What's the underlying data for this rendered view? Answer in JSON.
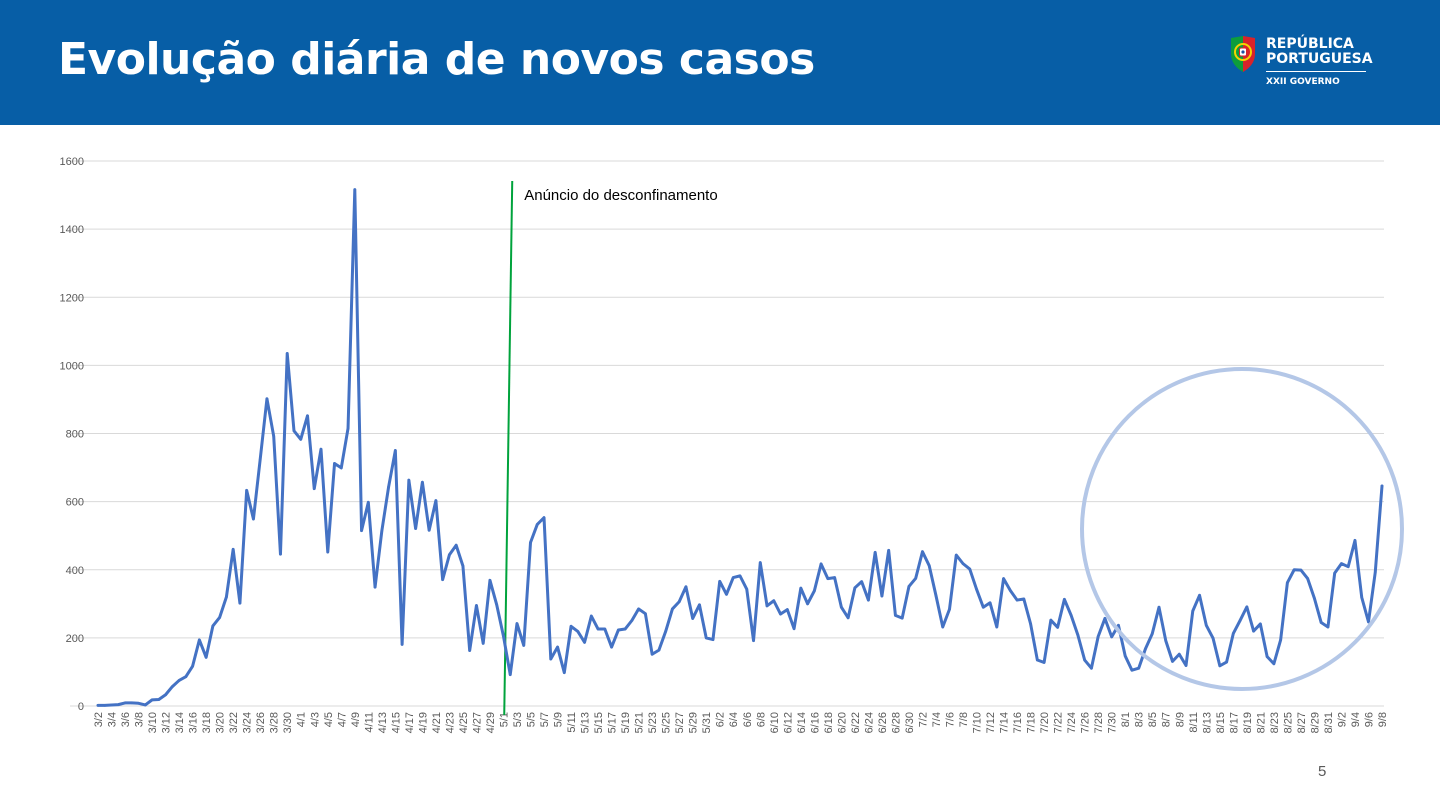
{
  "header": {
    "title": "Evolução diária de novos casos",
    "background_color": "#075ea6",
    "logo": {
      "line1": "REPÚBLICA",
      "line2": "PORTUGUESA",
      "line3": "XXII GOVERNO",
      "icon": "portugal-coat-of-arms-icon"
    }
  },
  "page_number": "5",
  "chart_data": {
    "type": "line",
    "title": "",
    "xlabel": "",
    "ylabel": "",
    "ylim": [
      0,
      1600
    ],
    "yticks": [
      0,
      200,
      400,
      600,
      800,
      1000,
      1200,
      1400,
      1600
    ],
    "grid": true,
    "start_date": "3/2",
    "x_tick_labels": [
      "3/2",
      "3/4",
      "3/6",
      "3/8",
      "3/10",
      "3/12",
      "3/14",
      "3/16",
      "3/18",
      "3/20",
      "3/22",
      "3/24",
      "3/26",
      "3/28",
      "3/30",
      "4/1",
      "4/3",
      "4/5",
      "4/7",
      "4/9",
      "4/11",
      "4/13",
      "4/15",
      "4/17",
      "4/19",
      "4/21",
      "4/23",
      "4/25",
      "4/27",
      "4/29",
      "5/1",
      "5/3",
      "5/5",
      "5/7",
      "5/9",
      "5/11",
      "5/13",
      "5/15",
      "5/17",
      "5/19",
      "5/21",
      "5/23",
      "5/25",
      "5/27",
      "5/29",
      "5/31",
      "6/2",
      "6/4",
      "6/6",
      "6/8",
      "6/10",
      "6/12",
      "6/14",
      "6/16",
      "6/18",
      "6/20",
      "6/22",
      "6/24",
      "6/26",
      "6/28",
      "6/30",
      "7/2",
      "7/4",
      "7/6",
      "7/8",
      "7/10",
      "7/12",
      "7/14",
      "7/16",
      "7/18",
      "7/20",
      "7/22",
      "7/24",
      "7/26",
      "7/28",
      "7/30",
      "8/1",
      "8/3",
      "8/5",
      "8/7",
      "8/9",
      "8/11",
      "8/13",
      "8/15",
      "8/17",
      "8/19",
      "8/21",
      "8/23",
      "8/25",
      "8/27",
      "8/29",
      "8/31",
      "9/2",
      "9/4",
      "9/6",
      "9/8"
    ],
    "series": [
      {
        "name": "",
        "color": "#4472c4",
        "values": [
          2,
          2,
          3,
          4,
          9,
          9,
          8,
          3,
          18,
          19,
          33,
          57,
          75,
          86,
          117,
          194,
          143,
          235,
          260,
          320,
          460,
          302,
          633,
          549,
          724,
          902,
          792,
          446,
          1035,
          808,
          783,
          852,
          638,
          754,
          452,
          712,
          699,
          815,
          1516,
          515,
          598,
          349,
          514,
          643,
          750,
          181,
          663,
          521,
          657,
          516,
          603,
          371,
          444,
          472,
          411,
          163,
          295,
          184,
          369,
          297,
          205,
          92,
          242,
          178,
          480,
          533,
          553,
          138,
          173,
          98,
          234,
          219,
          187,
          264,
          226,
          226,
          173,
          223,
          226,
          251,
          285,
          271,
          152,
          164,
          219,
          285,
          306,
          350,
          257,
          297,
          200,
          195,
          366,
          328,
          377,
          382,
          343,
          192,
          421,
          294,
          309,
          270,
          283,
          227,
          346,
          300,
          338,
          417,
          374,
          377,
          290,
          259,
          347,
          365,
          311,
          451,
          323,
          457,
          266,
          258,
          351,
          375,
          453,
          412,
          324,
          232,
          284,
          443,
          418,
          402,
          343,
          290,
          303,
          232,
          374,
          339,
          311,
          314,
          241,
          135,
          128,
          252,
          231,
          313,
          266,
          208,
          135,
          111,
          204,
          257,
          203,
          237,
          147,
          105,
          111,
          168,
          212,
          290,
          192,
          131,
          152,
          119,
          279,
          325,
          237,
          199,
          118,
          129,
          213,
          251,
          291,
          220,
          241,
          145,
          124,
          194,
          362,
          400,
          399,
          374,
          316,
          245,
          232,
          390,
          418,
          409,
          486,
          319,
          247,
          392,
          646
        ]
      }
    ],
    "annotations": [
      {
        "text": "Anúncio do desconfinamento",
        "x": "5/2",
        "type": "vertical-line",
        "color": "#00a33c"
      },
      {
        "text": "",
        "type": "circle-highlight",
        "color": "#b4c7e7"
      }
    ]
  }
}
